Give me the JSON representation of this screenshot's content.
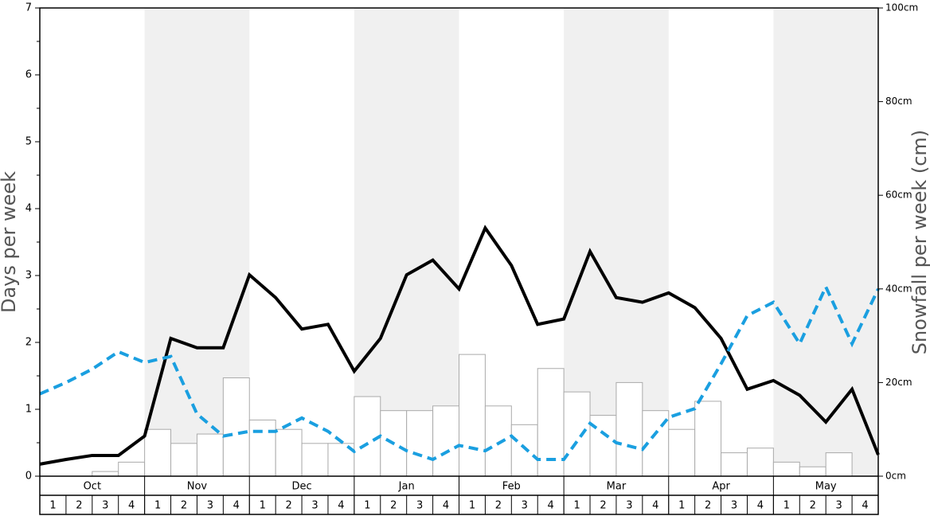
{
  "chart_data": {
    "type": "bar",
    "ylabel": "Days per week",
    "y2label": "Snowfall per week (cm)",
    "months": [
      "Oct",
      "Nov",
      "Dec",
      "Jan",
      "Feb",
      "Mar",
      "Apr",
      "May"
    ],
    "shaded_months": [
      false,
      true,
      false,
      true,
      false,
      true,
      false,
      true
    ],
    "categories": [
      "1",
      "2",
      "3",
      "4",
      "1",
      "2",
      "3",
      "4",
      "1",
      "2",
      "3",
      "4",
      "1",
      "2",
      "3",
      "4",
      "1",
      "2",
      "3",
      "4",
      "1",
      "2",
      "3",
      "4",
      "1",
      "2",
      "3",
      "4",
      "1",
      "2",
      "3",
      "4"
    ],
    "bar_series": {
      "color": "#ffffff",
      "edgecolor": "#aaaaaa",
      "axis": "y2",
      "values": [
        0,
        0,
        1,
        3,
        10,
        7,
        9,
        21,
        12,
        10,
        7,
        7,
        17,
        14,
        14,
        15,
        26,
        15,
        11,
        23,
        18,
        13,
        20,
        14,
        10,
        16,
        5,
        6,
        3,
        2,
        5,
        0
      ]
    },
    "xlim": [
      0,
      32
    ],
    "x": [
      0,
      1,
      2,
      3,
      4,
      5,
      6,
      7,
      8,
      9,
      10,
      11,
      12,
      13,
      14,
      15,
      16,
      17,
      18,
      19,
      20,
      21,
      22,
      23,
      24,
      25,
      26,
      27,
      28,
      29,
      30,
      31,
      32
    ],
    "series": [
      {
        "color": "#000000",
        "dashed": false,
        "values": [
          0.18,
          0.25,
          0.31,
          0.31,
          0.6,
          2.06,
          1.92,
          1.92,
          3.01,
          2.67,
          2.2,
          2.27,
          1.57,
          2.06,
          3.01,
          3.23,
          2.8,
          3.71,
          3.15,
          2.27,
          2.35,
          3.36,
          2.67,
          2.6,
          2.74,
          2.52,
          2.06,
          1.3,
          1.43,
          1.21,
          0.81,
          1.3,
          0.32
        ]
      },
      {
        "color": "#1a9fe0",
        "dashed": true,
        "values": [
          1.23,
          1.4,
          1.6,
          1.86,
          1.7,
          1.79,
          0.93,
          0.6,
          0.67,
          0.67,
          0.87,
          0.67,
          0.37,
          0.6,
          0.38,
          0.25,
          0.46,
          0.38,
          0.6,
          0.25,
          0.25,
          0.79,
          0.5,
          0.4,
          0.88,
          1.01,
          1.68,
          2.4,
          2.6,
          1.98,
          2.83,
          1.98,
          2.8
        ]
      }
    ],
    "ylim": [
      0,
      7
    ],
    "yticks": [
      0,
      1,
      2,
      3,
      4,
      5,
      6,
      7
    ],
    "yminorticks": [
      0.5,
      1.5,
      2.5,
      3.5,
      4.5,
      5.5,
      6.5
    ],
    "y2lim": [
      0,
      100
    ],
    "y2ticks": [
      {
        "value": 0,
        "label": "0cm"
      },
      {
        "value": 20,
        "label": "20cm"
      },
      {
        "value": 40,
        "label": "40cm"
      },
      {
        "value": 60,
        "label": "60cm"
      },
      {
        "value": 80,
        "label": "80cm"
      },
      {
        "value": 100,
        "label": "100cm"
      }
    ]
  }
}
